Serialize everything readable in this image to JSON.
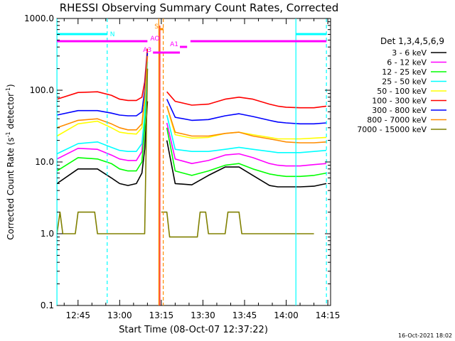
{
  "chart_data": {
    "type": "line",
    "title": "RHESSI Observing Summary Count Rates, Corrected",
    "xlabel": "Start Time (08-Oct-07 12:37:22)",
    "ylabel": "Corrected Count Rate (s",
    "ylabel_sup": "-1",
    "ylabel_tail": " detector",
    "ylabel_sup2": "-1",
    "ylabel_close": ")",
    "y_scale": "log",
    "ylim": [
      0.1,
      1000
    ],
    "xlim": [
      "12:37:22",
      "14:16:00"
    ],
    "x_ticks": [
      {
        "label": "12:45",
        "min": 45
      },
      {
        "label": "13:00",
        "min": 60
      },
      {
        "label": "13:15",
        "min": 75
      },
      {
        "label": "13:30",
        "min": 90
      },
      {
        "label": "13:45",
        "min": 105
      },
      {
        "label": "14:00",
        "min": 120
      },
      {
        "label": "14:15",
        "min": 135
      }
    ],
    "y_ticks": [
      {
        "label": "1000.0",
        "value": 1000
      },
      {
        "label": "100.0",
        "value": 100
      },
      {
        "label": "10.0",
        "value": 10
      },
      {
        "label": "1.0",
        "value": 1
      },
      {
        "label": "0.1",
        "value": 0.1
      }
    ],
    "legend_header": "Det 1,3,4,5,6,9",
    "legend_position": "right",
    "series": [
      {
        "name": "3 - 6 keV",
        "color": "#000000",
        "x": [
          37.4,
          45,
          52,
          57,
          60,
          63,
          66,
          68,
          69,
          70,
          71,
          73,
          75,
          77,
          80,
          86,
          92,
          98,
          103,
          108,
          114,
          117,
          120,
          125,
          130,
          134.5
        ],
        "y": [
          5,
          8,
          8,
          6,
          5,
          4.7,
          5,
          7,
          15,
          70,
          null,
          null,
          null,
          20,
          5,
          4.8,
          6.5,
          8.5,
          8.5,
          6.5,
          4.7,
          4.5,
          4.5,
          4.5,
          4.6,
          5
        ]
      },
      {
        "name": "6 - 12 keV",
        "color": "#ff00ff",
        "x": [
          37.4,
          45,
          52,
          57,
          60,
          63,
          66,
          68,
          69,
          70,
          71,
          73,
          75,
          77,
          80,
          86,
          92,
          98,
          103,
          108,
          114,
          117,
          120,
          125,
          130,
          134.5
        ],
        "y": [
          11,
          15.5,
          15,
          12.5,
          11,
          10.5,
          10.5,
          14,
          40,
          300,
          null,
          null,
          null,
          35,
          11,
          9.5,
          10.5,
          12.5,
          13,
          11.5,
          9.5,
          9,
          8.8,
          8.8,
          9.2,
          9.5
        ]
      },
      {
        "name": "12 - 25 keV",
        "color": "#00ff00",
        "x": [
          37.4,
          45,
          52,
          57,
          60,
          63,
          66,
          68,
          69,
          70,
          71,
          73,
          75,
          77,
          80,
          86,
          92,
          98,
          103,
          108,
          114,
          117,
          120,
          125,
          130,
          134.5
        ],
        "y": [
          7.5,
          11.5,
          11,
          9.5,
          8,
          7.5,
          7.5,
          10,
          30,
          200,
          null,
          null,
          null,
          30,
          7.5,
          6.5,
          7.5,
          9,
          9.5,
          8,
          6.8,
          6.5,
          6.3,
          6.3,
          6.5,
          7
        ]
      },
      {
        "name": "25 - 50 keV",
        "color": "#00ffff",
        "x": [
          37.4,
          45,
          52,
          57,
          60,
          63,
          66,
          68,
          69,
          70,
          71,
          73,
          75,
          77,
          80,
          86,
          92,
          98,
          103,
          108,
          114,
          117,
          120,
          125,
          130,
          134.5
        ],
        "y": [
          13,
          18,
          19,
          16,
          14.5,
          14,
          14,
          18,
          45,
          250,
          null,
          null,
          null,
          45,
          15,
          14,
          14,
          15,
          16,
          15,
          14,
          13.5,
          13.5,
          13.5,
          14,
          14.5
        ]
      },
      {
        "name": "50 - 100 keV",
        "color": "#ffff00",
        "x": [
          37.4,
          45,
          52,
          57,
          60,
          63,
          66,
          68,
          69,
          70,
          71,
          73,
          75,
          77,
          80,
          86,
          92,
          98,
          103,
          108,
          114,
          117,
          120,
          125,
          130,
          134.5
        ],
        "y": [
          23,
          34,
          37,
          30,
          26,
          25,
          24.5,
          30,
          70,
          320,
          null,
          null,
          null,
          60,
          24,
          21.5,
          22,
          25,
          26,
          24,
          22,
          21,
          21,
          21,
          21.5,
          22
        ]
      },
      {
        "name": "100 - 300 keV",
        "color": "#ff0000",
        "x": [
          37.4,
          45,
          52,
          57,
          60,
          63,
          66,
          68,
          69,
          70,
          71,
          73,
          75,
          77,
          80,
          86,
          92,
          98,
          103,
          108,
          114,
          117,
          120,
          125,
          130,
          134.5
        ],
        "y": [
          75,
          93,
          95,
          85,
          75,
          72,
          72,
          80,
          130,
          380,
          null,
          null,
          null,
          95,
          70,
          62,
          64,
          75,
          80,
          75,
          64,
          60,
          58,
          57,
          57,
          60
        ]
      },
      {
        "name": "300 - 800 keV",
        "color": "#0000ff",
        "x": [
          37.4,
          45,
          52,
          57,
          60,
          63,
          66,
          68,
          69,
          70,
          71,
          73,
          75,
          77,
          80,
          86,
          92,
          98,
          103,
          108,
          114,
          117,
          120,
          125,
          130,
          134.5
        ],
        "y": [
          45,
          52,
          52,
          48,
          45,
          44,
          44,
          50,
          100,
          330,
          null,
          null,
          null,
          75,
          42,
          38,
          39,
          44,
          47,
          43,
          38,
          36,
          35,
          34,
          34,
          35
        ]
      },
      {
        "name": "800 - 7000 keV",
        "color": "#ff8c00",
        "x": [
          37.4,
          45,
          52,
          57,
          60,
          63,
          66,
          68,
          69,
          70,
          71,
          73,
          75,
          77,
          80,
          86,
          92,
          98,
          103,
          108,
          114,
          117,
          120,
          125,
          130,
          134.5
        ],
        "y": [
          30,
          38,
          40,
          34,
          30,
          28,
          28,
          34,
          80,
          300,
          null,
          null,
          null,
          60,
          26,
          23,
          23,
          25,
          26,
          23,
          21,
          20,
          19,
          18.5,
          18.5,
          19
        ]
      },
      {
        "name": "7000 - 15000 keV",
        "color": "#808000",
        "x": [
          37.4,
          38.5,
          39.5,
          44,
          45,
          51,
          52,
          53,
          60,
          66,
          69,
          70,
          71,
          74,
          75,
          77,
          78,
          88,
          89,
          91,
          92,
          98,
          99,
          103,
          104,
          130
        ],
        "y": [
          1,
          2,
          1,
          1,
          2,
          2,
          1,
          1,
          1,
          1,
          1,
          200,
          null,
          null,
          2,
          2,
          0.9,
          0.9,
          2,
          2,
          1,
          1,
          2,
          2,
          1,
          1
        ]
      }
    ],
    "annotations": {
      "top_bars": [
        {
          "label": "N",
          "color": "#00ffff",
          "segments": [
            [
              37.4,
              55.5
            ],
            [
              123.5,
              134.5
            ]
          ]
        },
        {
          "label": "S",
          "color": "#ff8c00",
          "segments": [
            [
              74.5,
              75.8
            ]
          ]
        },
        {
          "label": "AO",
          "color": "#ff00ff",
          "segments": [
            [
              37.4,
              70
            ],
            [
              85.5,
              134.5
            ]
          ]
        },
        {
          "label": "A1",
          "color": "#ff00ff",
          "segments": [
            [
              81.7,
              84.3
            ]
          ]
        },
        {
          "label": "A3",
          "color": "#ff00ff",
          "segments": [
            [
              72,
              81.7
            ]
          ]
        }
      ],
      "vlines_cyan_solid": [
        37.4,
        123.5
      ],
      "vlines_cyan_dashed": [
        55.5,
        134.5
      ],
      "vlines_orange": [
        74.1,
        75.7
      ],
      "vline_red": [
        74.1
      ]
    }
  },
  "footer_date": "16-Oct-2021 18:02"
}
